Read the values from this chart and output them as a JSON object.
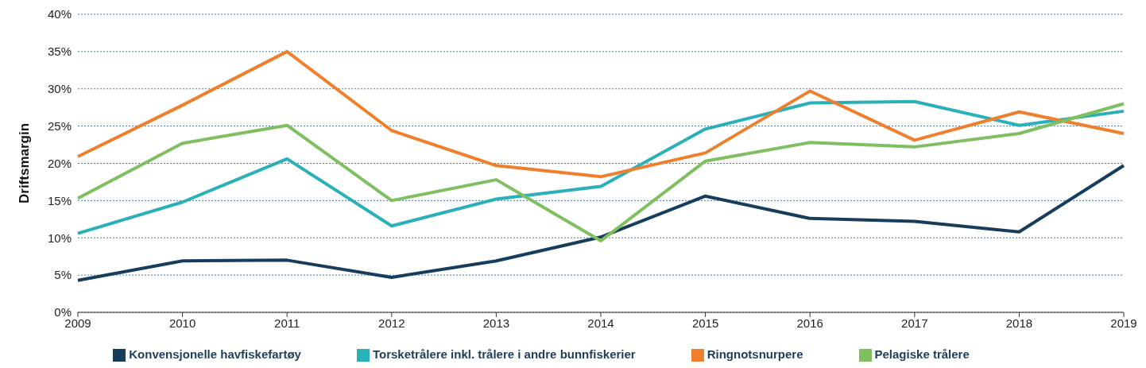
{
  "chart_data": {
    "type": "line",
    "ylabel": "Driftsmargin",
    "categories": [
      "2009",
      "2010",
      "2011",
      "2012",
      "2013",
      "2014",
      "2015",
      "2016",
      "2017",
      "2018",
      "2019"
    ],
    "series": [
      {
        "name": "Konvensjonelle havfiskefartøy",
        "color": "#163d5c",
        "values": [
          4.3,
          6.9,
          7.0,
          4.7,
          6.9,
          10.1,
          15.6,
          12.6,
          12.2,
          10.8,
          19.7
        ]
      },
      {
        "name": "Torsketrålere inkl. trålere i andre bunnfiskerier",
        "color": "#2ab0b8",
        "values": [
          10.6,
          14.8,
          20.6,
          11.6,
          15.2,
          16.9,
          24.6,
          28.1,
          28.3,
          25.1,
          27.0
        ]
      },
      {
        "name": "Ringnotsnurpere",
        "color": "#f07f2d",
        "values": [
          20.9,
          27.8,
          35.0,
          24.4,
          19.7,
          18.2,
          21.4,
          29.7,
          23.1,
          26.9,
          24.0
        ]
      },
      {
        "name": "Pelagiske trålere",
        "color": "#7fbf60",
        "values": [
          15.3,
          22.7,
          25.1,
          15.0,
          17.8,
          9.6,
          20.3,
          22.8,
          22.2,
          24.0,
          28.0
        ]
      }
    ],
    "ylim": [
      0,
      40
    ],
    "yticks": [
      {
        "value": 0,
        "label": "0%"
      },
      {
        "value": 5,
        "label": "5%"
      },
      {
        "value": 10,
        "label": "10%"
      },
      {
        "value": 15,
        "label": "15%"
      },
      {
        "value": 20,
        "label": "20%"
      },
      {
        "value": 25,
        "label": "25%"
      },
      {
        "value": 30,
        "label": "30%"
      },
      {
        "value": 35,
        "label": "35%"
      },
      {
        "value": 40,
        "label": "40%"
      }
    ],
    "grid": "y",
    "legend": "bottom",
    "marker": "none",
    "line_style": "solid"
  }
}
